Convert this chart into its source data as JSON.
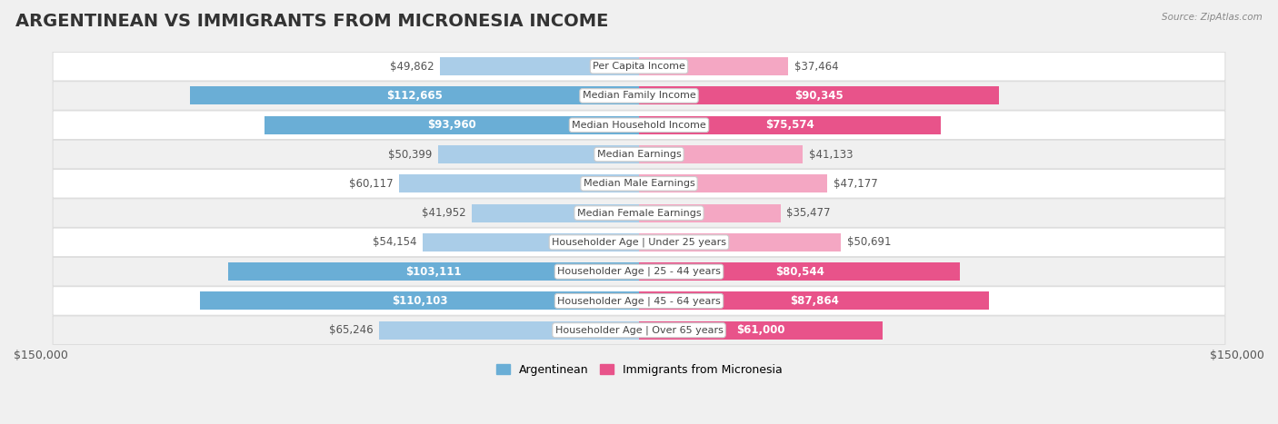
{
  "title": "ARGENTINEAN VS IMMIGRANTS FROM MICRONESIA INCOME",
  "source": "Source: ZipAtlas.com",
  "categories": [
    "Per Capita Income",
    "Median Family Income",
    "Median Household Income",
    "Median Earnings",
    "Median Male Earnings",
    "Median Female Earnings",
    "Householder Age | Under 25 years",
    "Householder Age | 25 - 44 years",
    "Householder Age | 45 - 64 years",
    "Householder Age | Over 65 years"
  ],
  "argentinean": [
    49862,
    112665,
    93960,
    50399,
    60117,
    41952,
    54154,
    103111,
    110103,
    65246
  ],
  "micronesia": [
    37464,
    90345,
    75574,
    41133,
    47177,
    35477,
    50691,
    80544,
    87864,
    61000
  ],
  "max_val": 150000,
  "bar_color_arg_large": "#6aaed6",
  "bar_color_arg_small": "#aacde8",
  "bar_color_mic_large": "#e8538a",
  "bar_color_mic_small": "#f4a7c3",
  "bg_color": "#f0f0f0",
  "row_bg_even": "#ffffff",
  "row_bg_odd": "#f0f0f0",
  "row_border": "#dddddd",
  "legend_arg_color": "#6aaed6",
  "legend_mic_color": "#e8538a",
  "inside_label_threshold_arg": 75000,
  "inside_label_threshold_mic": 60000,
  "title_fontsize": 14,
  "label_fontsize": 8.5,
  "cat_fontsize": 8.0,
  "tick_fontsize": 9
}
